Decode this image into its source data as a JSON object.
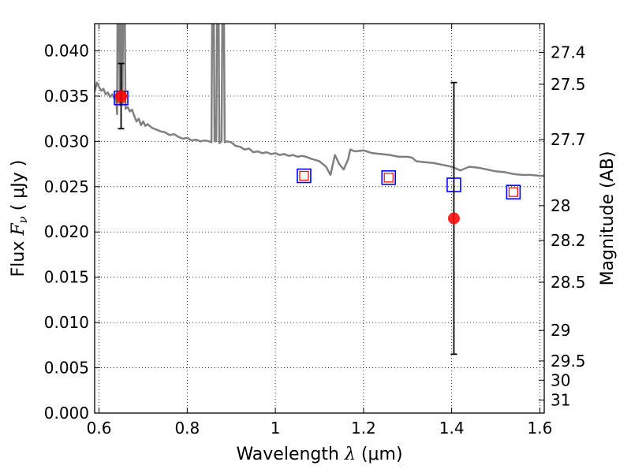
{
  "chart_data": {
    "type": "line",
    "xlabel": "Wavelength",
    "xlabel_symbol": "λ",
    "xlabel_unit": "μm",
    "ylabel": "Flux",
    "ylabel_symbol": "F",
    "ylabel_subscript": "ν",
    "ylabel_unit": "μJy",
    "ylabel_right": "Magnitude (AB)",
    "xlim": [
      0.59,
      1.61
    ],
    "ylim": [
      0.0,
      0.043
    ],
    "grid": true,
    "x_ticks": [
      {
        "value": 0.6,
        "label": "0.6"
      },
      {
        "value": 0.8,
        "label": "0.8"
      },
      {
        "value": 1.0,
        "label": "1"
      },
      {
        "value": 1.2,
        "label": "1.2"
      },
      {
        "value": 1.4,
        "label": "1.4"
      },
      {
        "value": 1.6,
        "label": "1.6"
      }
    ],
    "y_ticks": [
      {
        "value": 0.0,
        "label": "0.000"
      },
      {
        "value": 0.005,
        "label": "0.005"
      },
      {
        "value": 0.01,
        "label": "0.010"
      },
      {
        "value": 0.015,
        "label": "0.015"
      },
      {
        "value": 0.02,
        "label": "0.020"
      },
      {
        "value": 0.025,
        "label": "0.025"
      },
      {
        "value": 0.03,
        "label": "0.030"
      },
      {
        "value": 0.035,
        "label": "0.035"
      },
      {
        "value": 0.04,
        "label": "0.040"
      }
    ],
    "right_ticks": [
      {
        "mag": 27.4,
        "label": "27.4"
      },
      {
        "mag": 27.5,
        "label": "27.5"
      },
      {
        "mag": 27.7,
        "label": "27.7"
      },
      {
        "mag": 28,
        "label": "28"
      },
      {
        "mag": 28.2,
        "label": "28.2"
      },
      {
        "mag": 28.5,
        "label": "28.5"
      },
      {
        "mag": 29,
        "label": "29"
      },
      {
        "mag": 29.5,
        "label": "29.5"
      },
      {
        "mag": 30,
        "label": "30"
      },
      {
        "mag": 31,
        "label": "31"
      }
    ],
    "model_spectrum": {
      "color": "#808080",
      "points": [
        [
          0.59,
          0.0355
        ],
        [
          0.595,
          0.0365
        ],
        [
          0.6,
          0.036
        ],
        [
          0.605,
          0.0356
        ],
        [
          0.61,
          0.0358
        ],
        [
          0.615,
          0.0352
        ],
        [
          0.62,
          0.0354
        ],
        [
          0.625,
          0.0349
        ],
        [
          0.63,
          0.0352
        ],
        [
          0.635,
          0.0347
        ],
        [
          0.638,
          0.0352
        ],
        [
          0.641,
          0.033
        ],
        [
          0.642,
          0.047
        ],
        [
          0.645,
          0.047
        ],
        [
          0.647,
          0.034
        ],
        [
          0.649,
          0.047
        ],
        [
          0.651,
          0.047
        ],
        [
          0.653,
          0.034
        ],
        [
          0.655,
          0.047
        ],
        [
          0.658,
          0.047
        ],
        [
          0.66,
          0.0336
        ],
        [
          0.665,
          0.0338
        ],
        [
          0.67,
          0.0333
        ],
        [
          0.675,
          0.0335
        ],
        [
          0.68,
          0.0328
        ],
        [
          0.685,
          0.0322
        ],
        [
          0.69,
          0.0325
        ],
        [
          0.695,
          0.0318
        ],
        [
          0.7,
          0.0322
        ],
        [
          0.705,
          0.0317
        ],
        [
          0.71,
          0.0319
        ],
        [
          0.72,
          0.0315
        ],
        [
          0.73,
          0.0313
        ],
        [
          0.74,
          0.0311
        ],
        [
          0.75,
          0.031
        ],
        [
          0.76,
          0.0307
        ],
        [
          0.77,
          0.0308
        ],
        [
          0.78,
          0.0305
        ],
        [
          0.79,
          0.0303
        ],
        [
          0.8,
          0.0304
        ],
        [
          0.81,
          0.0301
        ],
        [
          0.82,
          0.0302
        ],
        [
          0.83,
          0.03
        ],
        [
          0.84,
          0.0301
        ],
        [
          0.85,
          0.03
        ],
        [
          0.855,
          0.0299
        ],
        [
          0.857,
          0.047
        ],
        [
          0.86,
          0.047
        ],
        [
          0.862,
          0.03
        ],
        [
          0.866,
          0.03
        ],
        [
          0.868,
          0.047
        ],
        [
          0.871,
          0.047
        ],
        [
          0.873,
          0.0298
        ],
        [
          0.878,
          0.03
        ],
        [
          0.88,
          0.047
        ],
        [
          0.883,
          0.047
        ],
        [
          0.885,
          0.0299
        ],
        [
          0.89,
          0.03
        ],
        [
          0.9,
          0.0299
        ],
        [
          0.91,
          0.0295
        ],
        [
          0.92,
          0.0294
        ],
        [
          0.93,
          0.0291
        ],
        [
          0.94,
          0.0292
        ],
        [
          0.95,
          0.0288
        ],
        [
          0.96,
          0.0289
        ],
        [
          0.97,
          0.0287
        ],
        [
          0.98,
          0.0288
        ],
        [
          0.99,
          0.0286
        ],
        [
          1.0,
          0.0287
        ],
        [
          1.01,
          0.0285
        ],
        [
          1.02,
          0.0286
        ],
        [
          1.03,
          0.0284
        ],
        [
          1.04,
          0.0285
        ],
        [
          1.05,
          0.0283
        ],
        [
          1.06,
          0.0284
        ],
        [
          1.07,
          0.0283
        ],
        [
          1.08,
          0.0281
        ],
        [
          1.1,
          0.0278
        ],
        [
          1.115,
          0.0272
        ],
        [
          1.125,
          0.0263
        ],
        [
          1.135,
          0.0285
        ],
        [
          1.145,
          0.0275
        ],
        [
          1.155,
          0.0269
        ],
        [
          1.165,
          0.028
        ],
        [
          1.17,
          0.0291
        ],
        [
          1.18,
          0.0289
        ],
        [
          1.2,
          0.029
        ],
        [
          1.22,
          0.0287
        ],
        [
          1.24,
          0.0286
        ],
        [
          1.26,
          0.0285
        ],
        [
          1.28,
          0.0283
        ],
        [
          1.3,
          0.0283
        ],
        [
          1.31,
          0.0282
        ],
        [
          1.32,
          0.0278
        ],
        [
          1.34,
          0.0277
        ],
        [
          1.36,
          0.0276
        ],
        [
          1.38,
          0.0274
        ],
        [
          1.4,
          0.0272
        ],
        [
          1.42,
          0.0268
        ],
        [
          1.44,
          0.0272
        ],
        [
          1.46,
          0.0271
        ],
        [
          1.48,
          0.0269
        ],
        [
          1.5,
          0.0267
        ],
        [
          1.52,
          0.0266
        ],
        [
          1.54,
          0.0264
        ],
        [
          1.56,
          0.0263
        ],
        [
          1.58,
          0.0263
        ],
        [
          1.6,
          0.0262
        ],
        [
          1.61,
          0.0262
        ]
      ]
    },
    "model_squares": {
      "color": "#0000ff",
      "points": [
        {
          "x": 0.65,
          "y": 0.0348
        },
        {
          "x": 1.065,
          "y": 0.0262
        },
        {
          "x": 1.257,
          "y": 0.026
        },
        {
          "x": 1.405,
          "y": 0.0252
        },
        {
          "x": 1.54,
          "y": 0.0244
        }
      ]
    },
    "inner_squares": {
      "color": "#ff0000",
      "points": [
        {
          "x": 0.65,
          "y": 0.0348
        },
        {
          "x": 1.065,
          "y": 0.0262
        },
        {
          "x": 1.257,
          "y": 0.026
        },
        {
          "x": 1.54,
          "y": 0.0244
        }
      ]
    },
    "observations": [
      {
        "x": 0.65,
        "y": 0.035,
        "yerr_low": 0.0314,
        "yerr_high": 0.0386,
        "color": "#ff0000"
      },
      {
        "x": 1.405,
        "y": 0.0215,
        "yerr_low": 0.0065,
        "yerr_high": 0.0365,
        "color": "#ff0000"
      }
    ]
  }
}
